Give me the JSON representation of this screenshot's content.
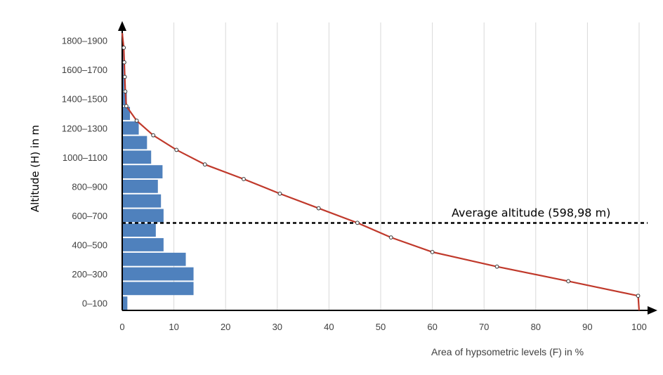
{
  "chart_data": {
    "type": "bar",
    "orientation": "horizontal",
    "xlabel": "Area of hypsometric levels (F) in %",
    "ylabel": "Altitude (H) in m",
    "xlim": [
      0,
      100
    ],
    "x_ticks": [
      "0",
      "10",
      "20",
      "30",
      "40",
      "50",
      "60",
      "70",
      "80",
      "90",
      "100"
    ],
    "y_tick_labels": [
      "0–100",
      "200–300",
      "400–500",
      "600–700",
      "800–900",
      "1000–1100",
      "1200–1300",
      "1400–1500",
      "1600–1700",
      "1800–1900"
    ],
    "categories": [
      "0–100",
      "100–200",
      "200–300",
      "300–400",
      "400–500",
      "500–600",
      "600–700",
      "700–800",
      "800–900",
      "900–1000",
      "1000–1100",
      "1100–1200",
      "1200–1300",
      "1300–1400",
      "1400–1500",
      "1500–1600",
      "1600–1700",
      "1700–1800",
      "1800–1900"
    ],
    "values": [
      1.0,
      13.8,
      13.8,
      12.3,
      8.0,
      6.5,
      8.0,
      7.5,
      6.9,
      7.8,
      5.6,
      4.8,
      3.2,
      1.5,
      0.9,
      0.4,
      0.3,
      0.2,
      0.1
    ],
    "grid": true,
    "bar_color": "#4f81bd",
    "curve": {
      "color": "#c0392b",
      "points": [
        {
          "x": 99.8,
          "y": 100
        },
        {
          "x": 86.3,
          "y": 200
        },
        {
          "x": 72.5,
          "y": 300
        },
        {
          "x": 60.0,
          "y": 400
        },
        {
          "x": 52.0,
          "y": 500
        },
        {
          "x": 45.5,
          "y": 600
        },
        {
          "x": 38.0,
          "y": 700
        },
        {
          "x": 30.5,
          "y": 800
        },
        {
          "x": 23.5,
          "y": 900
        },
        {
          "x": 16.0,
          "y": 1000
        },
        {
          "x": 10.5,
          "y": 1100
        },
        {
          "x": 6.0,
          "y": 1200
        },
        {
          "x": 2.8,
          "y": 1300
        },
        {
          "x": 0.8,
          "y": 1400
        },
        {
          "x": 0.6,
          "y": 1500
        },
        {
          "x": 0.5,
          "y": 1600
        },
        {
          "x": 0.4,
          "y": 1700
        },
        {
          "x": 0.3,
          "y": 1800
        }
      ]
    },
    "average_line": {
      "value": 598.98,
      "label": "Average altitude (598,98 m)"
    }
  }
}
